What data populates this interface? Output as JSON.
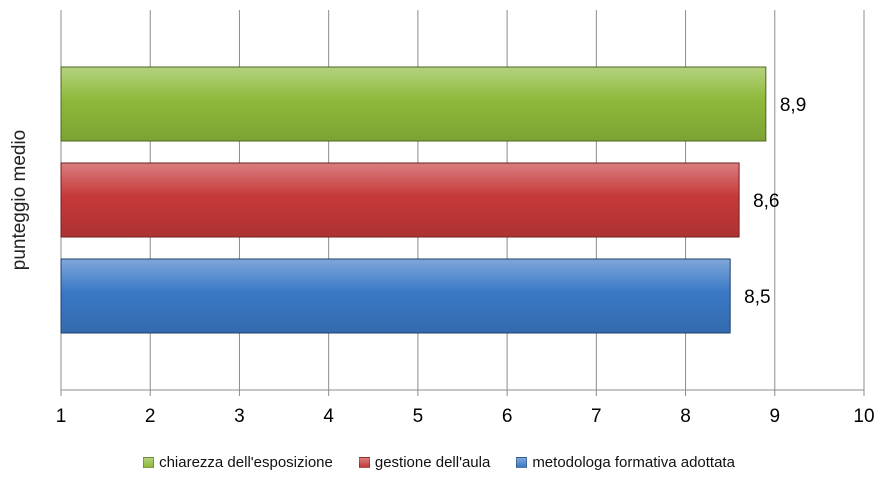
{
  "chart_data": {
    "type": "bar",
    "orientation": "horizontal",
    "title": "",
    "xlabel": "",
    "ylabel": "punteggio medio",
    "xlim": [
      1,
      10
    ],
    "x_ticks": [
      "1",
      "2",
      "3",
      "4",
      "5",
      "6",
      "7",
      "8",
      "9",
      "10"
    ],
    "grid": true,
    "legend_position": "bottom",
    "series": [
      {
        "name": "chiarezza dell'esposizione",
        "value": 8.9,
        "label": "8,9",
        "color": "#8DB93A"
      },
      {
        "name": "gestione dell'aula",
        "value": 8.6,
        "label": "8,6",
        "color": "#C6393A"
      },
      {
        "name": "metodologa formativa adottata",
        "value": 8.5,
        "label": "8,5",
        "color": "#3A78C6"
      }
    ]
  }
}
